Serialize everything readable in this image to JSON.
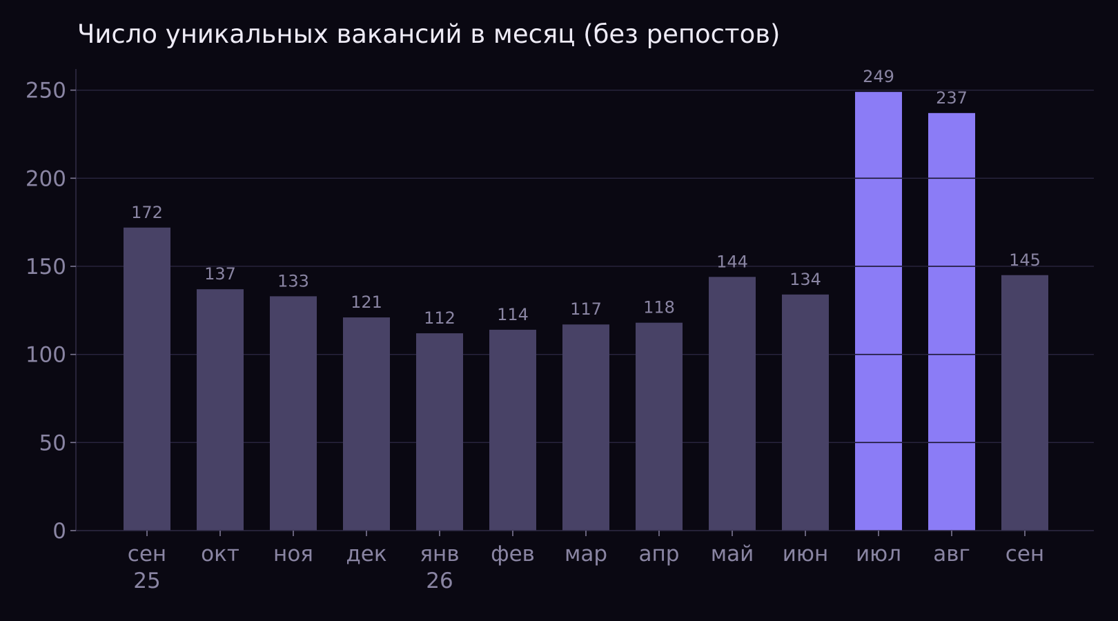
{
  "chart_data": {
    "type": "bar",
    "title": "Число уникальных вакансий в месяц (без репостов)",
    "xlabel": "",
    "ylabel": "",
    "categories": [
      [
        "сен",
        "25"
      ],
      [
        "окт"
      ],
      [
        "ноя"
      ],
      [
        "дек"
      ],
      [
        "янв",
        "26"
      ],
      [
        "фев"
      ],
      [
        "мар"
      ],
      [
        "апр"
      ],
      [
        "май"
      ],
      [
        "июн"
      ],
      [
        "июл"
      ],
      [
        "авг"
      ],
      [
        "сен"
      ]
    ],
    "values": [
      172,
      137,
      133,
      121,
      112,
      114,
      117,
      118,
      144,
      134,
      249,
      237,
      145
    ],
    "highlighted": [
      false,
      false,
      false,
      false,
      false,
      false,
      false,
      false,
      false,
      false,
      true,
      true,
      false
    ],
    "ylim": [
      0,
      262
    ],
    "yticks": [
      0,
      50,
      100,
      150,
      200,
      250
    ],
    "grid": true,
    "data_labels": true,
    "colors": {
      "background": "#0a0812",
      "bar": "#484266",
      "bar_highlight": "#8b7cf6",
      "grid": "#2a2640",
      "text": "#8a85a3",
      "title": "#eeebf6"
    }
  }
}
